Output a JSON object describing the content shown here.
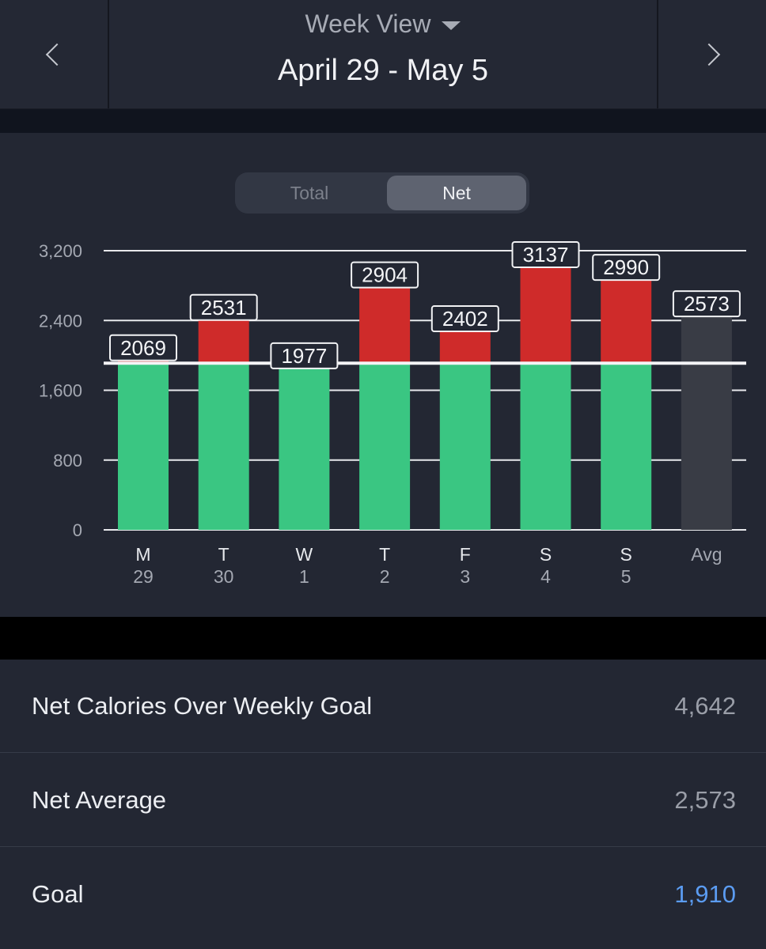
{
  "header": {
    "view_label": "Week View",
    "date_range": "April 29 - May 5"
  },
  "toggle": {
    "total_label": "Total",
    "net_label": "Net",
    "selected": "Net"
  },
  "colors": {
    "under_goal": "#3ac682",
    "over_goal": "#cf2b2a",
    "average": "#393c45",
    "goal_value": "#5b9cf2"
  },
  "chart_data": {
    "type": "bar",
    "stacked": true,
    "ylim": [
      0,
      3200
    ],
    "yticks": [
      "0",
      "800",
      "1,600",
      "2,400",
      "3,200"
    ],
    "ytick_values": [
      0,
      800,
      1600,
      2400,
      3200
    ],
    "goal_line": 1910,
    "grid": true,
    "categories": [
      {
        "day": "M",
        "date": "29"
      },
      {
        "day": "T",
        "date": "30"
      },
      {
        "day": "W",
        "date": "1"
      },
      {
        "day": "T",
        "date": "2"
      },
      {
        "day": "F",
        "date": "3"
      },
      {
        "day": "S",
        "date": "4"
      },
      {
        "day": "S",
        "date": "5"
      },
      {
        "day": "Avg",
        "date": ""
      }
    ],
    "values": [
      2069,
      2531,
      1977,
      2904,
      2402,
      3137,
      2990,
      2573
    ],
    "data_labels": [
      "2069",
      "2531",
      "1977",
      "2904",
      "2402",
      "3137",
      "2990",
      "2573"
    ]
  },
  "summary": {
    "rows": [
      {
        "label": "Net Calories Over Weekly Goal",
        "value": "4,642"
      },
      {
        "label": "Net Average",
        "value": "2,573"
      },
      {
        "label": "Goal",
        "value": "1,910"
      }
    ]
  }
}
